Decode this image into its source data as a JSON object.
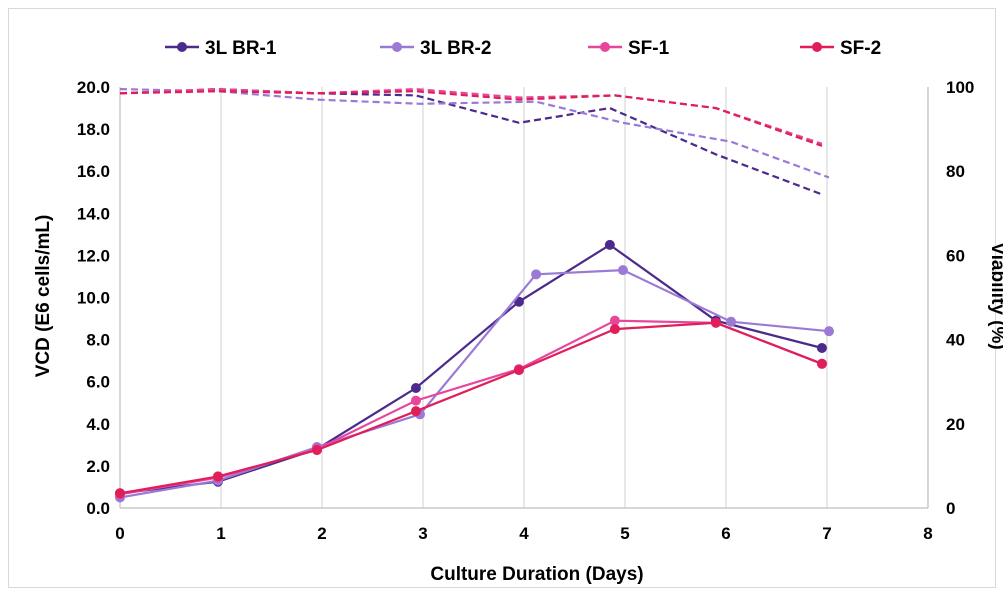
{
  "chart_data": {
    "type": "line",
    "title": "",
    "xlabel": "Culture Duration (Days)",
    "ylabel": "VCD (E6 cells/mL)",
    "y2label": "Viability (%)",
    "xlim": [
      0,
      8
    ],
    "ylim": [
      0,
      20
    ],
    "y2lim": [
      0,
      100
    ],
    "x_ticks": [
      "0",
      "1",
      "2",
      "3",
      "4",
      "5",
      "6",
      "7",
      "8"
    ],
    "y_ticks": [
      "0.0",
      "2.0",
      "4.0",
      "6.0",
      "8.0",
      "10.0",
      "12.0",
      "14.0",
      "16.0",
      "18.0",
      "20.0"
    ],
    "y2_ticks": [
      "0",
      "20",
      "40",
      "60",
      "80",
      "100"
    ],
    "grid": "vertical",
    "legend_position": "top",
    "series": [
      {
        "name": "3L BR-1",
        "color": "#4b2a8c",
        "vcd": [
          [
            0,
            0.7
          ],
          [
            0.97,
            1.25
          ],
          [
            1.95,
            2.8
          ],
          [
            2.93,
            5.7
          ],
          [
            3.95,
            9.8
          ],
          [
            4.85,
            12.5
          ],
          [
            5.9,
            8.9
          ],
          [
            6.95,
            7.6
          ]
        ],
        "viability": [
          [
            0,
            98.5
          ],
          [
            0.97,
            99.5
          ],
          [
            1.95,
            98.5
          ],
          [
            2.93,
            98
          ],
          [
            3.95,
            91.5
          ],
          [
            4.85,
            95
          ],
          [
            5.9,
            84
          ],
          [
            6.95,
            74.5
          ]
        ]
      },
      {
        "name": "3L BR-2",
        "color": "#9b7ad6",
        "vcd": [
          [
            0,
            0.5
          ],
          [
            0.97,
            1.3
          ],
          [
            1.95,
            2.9
          ],
          [
            2.97,
            4.45
          ],
          [
            4.12,
            11.1
          ],
          [
            4.98,
            11.3
          ],
          [
            6.05,
            8.85
          ],
          [
            7.02,
            8.4
          ]
        ],
        "viability": [
          [
            0,
            99.5
          ],
          [
            0.97,
            99
          ],
          [
            1.95,
            97
          ],
          [
            2.97,
            96
          ],
          [
            4.12,
            96.5
          ],
          [
            4.98,
            91.5
          ],
          [
            6.05,
            87
          ],
          [
            7.02,
            78.5
          ]
        ]
      },
      {
        "name": "SF-1",
        "color": "#e6479b",
        "vcd": [
          [
            0,
            0.65
          ],
          [
            0.97,
            1.45
          ],
          [
            1.95,
            2.8
          ],
          [
            2.93,
            5.1
          ],
          [
            3.95,
            6.6
          ],
          [
            4.9,
            8.9
          ],
          [
            5.9,
            8.8
          ],
          [
            6.95,
            6.85
          ]
        ],
        "viability": [
          [
            0,
            98.5
          ],
          [
            0.97,
            99.5
          ],
          [
            1.95,
            98.5
          ],
          [
            2.93,
            99.5
          ],
          [
            3.95,
            97.5
          ],
          [
            4.9,
            98
          ],
          [
            5.9,
            95
          ],
          [
            6.95,
            86.5
          ]
        ]
      },
      {
        "name": "SF-2",
        "color": "#e01e5a",
        "vcd": [
          [
            0,
            0.7
          ],
          [
            0.97,
            1.5
          ],
          [
            1.95,
            2.75
          ],
          [
            2.93,
            4.6
          ],
          [
            3.95,
            6.55
          ],
          [
            4.9,
            8.5
          ],
          [
            5.9,
            8.8
          ],
          [
            6.95,
            6.85
          ]
        ],
        "viability": [
          [
            0,
            98.5
          ],
          [
            0.97,
            99
          ],
          [
            1.95,
            98.5
          ],
          [
            2.93,
            99
          ],
          [
            3.95,
            97
          ],
          [
            4.9,
            98
          ],
          [
            5.9,
            95
          ],
          [
            6.95,
            86
          ]
        ]
      }
    ]
  }
}
